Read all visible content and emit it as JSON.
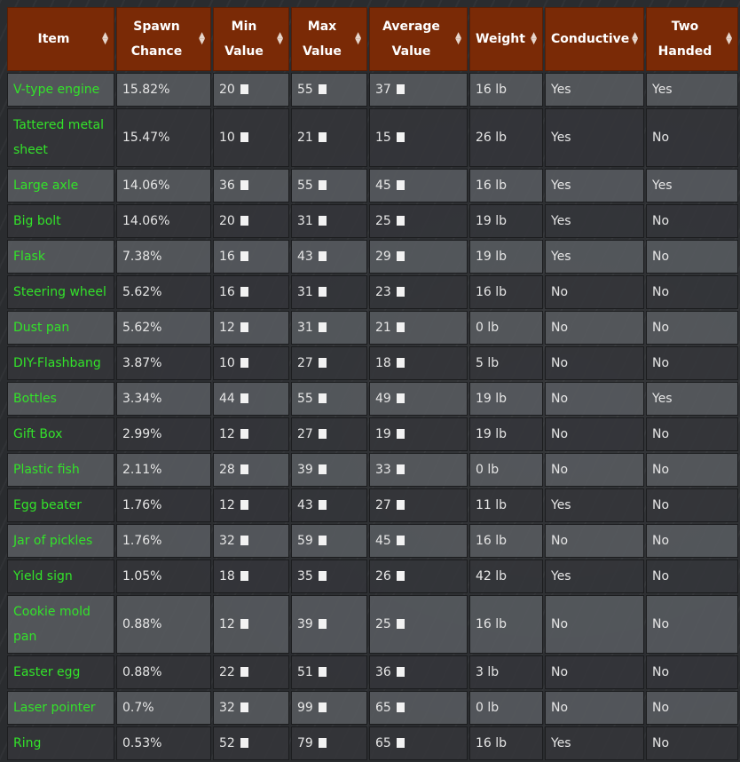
{
  "headers": {
    "item": "Item",
    "spawn_chance": "Spawn Chance",
    "min_value": "Min Value",
    "max_value": "Max Value",
    "average_value": "Average Value",
    "weight": "Weight",
    "conductive": "Conductive",
    "two_handed": "Two Handed"
  },
  "rows": [
    {
      "item": "V-type engine",
      "spawn": "15.82%",
      "min": "20",
      "max": "55",
      "avg": "37",
      "weight": "16 lb",
      "conductive": "Yes",
      "two_handed": "Yes"
    },
    {
      "item": "Tattered metal sheet",
      "spawn": "15.47%",
      "min": "10",
      "max": "21",
      "avg": "15",
      "weight": "26 lb",
      "conductive": "Yes",
      "two_handed": "No"
    },
    {
      "item": "Large axle",
      "spawn": "14.06%",
      "min": "36",
      "max": "55",
      "avg": "45",
      "weight": "16 lb",
      "conductive": "Yes",
      "two_handed": "Yes"
    },
    {
      "item": "Big bolt",
      "spawn": "14.06%",
      "min": "20",
      "max": "31",
      "avg": "25",
      "weight": "19 lb",
      "conductive": "Yes",
      "two_handed": "No"
    },
    {
      "item": "Flask",
      "spawn": "7.38%",
      "min": "16",
      "max": "43",
      "avg": "29",
      "weight": "19 lb",
      "conductive": "Yes",
      "two_handed": "No"
    },
    {
      "item": "Steering wheel",
      "spawn": "5.62%",
      "min": "16",
      "max": "31",
      "avg": "23",
      "weight": "16 lb",
      "conductive": "No",
      "two_handed": "No"
    },
    {
      "item": "Dust pan",
      "spawn": "5.62%",
      "min": "12",
      "max": "31",
      "avg": "21",
      "weight": "0 lb",
      "conductive": "No",
      "two_handed": "No"
    },
    {
      "item": "DIY-Flashbang",
      "spawn": "3.87%",
      "min": "10",
      "max": "27",
      "avg": "18",
      "weight": "5 lb",
      "conductive": "No",
      "two_handed": "No"
    },
    {
      "item": "Bottles",
      "spawn": "3.34%",
      "min": "44",
      "max": "55",
      "avg": "49",
      "weight": "19 lb",
      "conductive": "No",
      "two_handed": "Yes"
    },
    {
      "item": "Gift Box",
      "spawn": "2.99%",
      "min": "12",
      "max": "27",
      "avg": "19",
      "weight": "19 lb",
      "conductive": "No",
      "two_handed": "No"
    },
    {
      "item": "Plastic fish",
      "spawn": "2.11%",
      "min": "28",
      "max": "39",
      "avg": "33",
      "weight": "0 lb",
      "conductive": "No",
      "two_handed": "No"
    },
    {
      "item": "Egg beater",
      "spawn": "1.76%",
      "min": "12",
      "max": "43",
      "avg": "27",
      "weight": "11 lb",
      "conductive": "Yes",
      "two_handed": "No"
    },
    {
      "item": "Jar of pickles",
      "spawn": "1.76%",
      "min": "32",
      "max": "59",
      "avg": "45",
      "weight": "16 lb",
      "conductive": "No",
      "two_handed": "No"
    },
    {
      "item": "Yield sign",
      "spawn": "1.05%",
      "min": "18",
      "max": "35",
      "avg": "26",
      "weight": "42 lb",
      "conductive": "Yes",
      "two_handed": "No"
    },
    {
      "item": "Cookie mold pan",
      "spawn": "0.88%",
      "min": "12",
      "max": "39",
      "avg": "25",
      "weight": "16 lb",
      "conductive": "No",
      "two_handed": "No"
    },
    {
      "item": "Easter egg",
      "spawn": "0.88%",
      "min": "22",
      "max": "51",
      "avg": "36",
      "weight": "3 lb",
      "conductive": "No",
      "two_handed": "No"
    },
    {
      "item": "Laser pointer",
      "spawn": "0.7%",
      "min": "32",
      "max": "99",
      "avg": "65",
      "weight": "0 lb",
      "conductive": "No",
      "two_handed": "No"
    },
    {
      "item": "Ring",
      "spawn": "0.53%",
      "min": "52",
      "max": "79",
      "avg": "65",
      "weight": "16 lb",
      "conductive": "Yes",
      "two_handed": "No"
    }
  ],
  "icons": {
    "sort": "sort-icon",
    "currency": "scrap-value-icon"
  },
  "colors": {
    "header_bg": "#7a2a06",
    "item_text": "#33e22a"
  }
}
